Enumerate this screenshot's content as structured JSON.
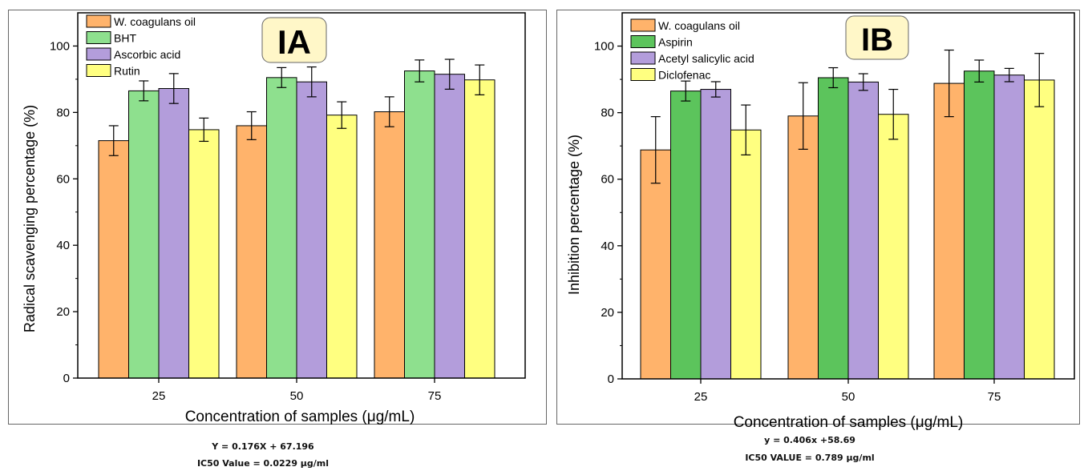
{
  "colors": {
    "orange": "#FFB36B",
    "green_a": "#8EE08E",
    "green_b": "#5CC45C",
    "purple": "#B39DDB",
    "yellow": "#FFFF80",
    "badge_fill": "#FFF7C8"
  },
  "chart_data": [
    {
      "type": "bar",
      "badge": "IA",
      "xlabel": "Concentration of samples (μg/mL)",
      "ylabel": "Radical scavenging percentage (%)",
      "categories": [
        "25",
        "50",
        "75"
      ],
      "ylim": [
        0,
        110
      ],
      "yticks": [
        "0",
        "20",
        "40",
        "60",
        "80",
        "100"
      ],
      "legend_position": "top-left",
      "grid": false,
      "series": [
        {
          "name": "W. coagulans oil",
          "values": [
            71.5,
            76,
            80.2
          ],
          "errors": [
            4.5,
            4.2,
            4.5
          ]
        },
        {
          "name": "BHT",
          "values": [
            86.5,
            90.5,
            92.5
          ],
          "errors": [
            3.0,
            3.0,
            3.3
          ]
        },
        {
          "name": "Ascorbic acid",
          "values": [
            87.2,
            89.2,
            91.5
          ],
          "errors": [
            4.5,
            4.5,
            4.5
          ]
        },
        {
          "name": "Rutin",
          "values": [
            74.8,
            79.2,
            89.8
          ],
          "errors": [
            3.5,
            4.0,
            4.5
          ]
        }
      ],
      "equation": "Y = 0.176X + 67.196",
      "ic50": "IC50 Value = 0.0229 μg/ml"
    },
    {
      "type": "bar",
      "badge": "IB",
      "xlabel": "Concentration of samples (μg/mL)",
      "ylabel": "Inhibition percentage (%)",
      "categories": [
        "25",
        "50",
        "75"
      ],
      "ylim": [
        0,
        110
      ],
      "yticks": [
        "0",
        "20",
        "40",
        "60",
        "80",
        "100"
      ],
      "legend_position": "top-left",
      "grid": false,
      "series": [
        {
          "name": "W. coagulans oil",
          "values": [
            68.8,
            79,
            88.8
          ],
          "errors": [
            10,
            10,
            10
          ]
        },
        {
          "name": "Aspirin",
          "values": [
            86.5,
            90.5,
            92.5
          ],
          "errors": [
            3.0,
            3.0,
            3.3
          ]
        },
        {
          "name": "Acetyl salicylic acid",
          "values": [
            87,
            89.2,
            91.3
          ],
          "errors": [
            2.3,
            2.5,
            2.0
          ]
        },
        {
          "name": "Diclofenac",
          "values": [
            74.8,
            79.5,
            89.8
          ],
          "errors": [
            7.5,
            7.5,
            8.0
          ]
        }
      ],
      "equation": "y = 0.406x +58.69",
      "ic50": "IC50 VALUE = 0.789 μg/ml"
    }
  ]
}
